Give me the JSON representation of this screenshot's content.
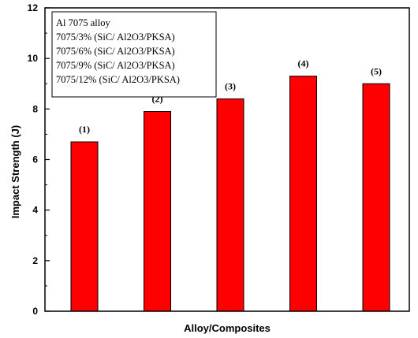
{
  "chart_data": {
    "type": "bar",
    "title": "",
    "xlabel": "Alloy/Composites",
    "ylabel": "Impact Strength (J)",
    "ylim": [
      0,
      12
    ],
    "yticks": [
      "0",
      "2",
      "4",
      "6",
      "8",
      "10",
      "12"
    ],
    "categories": [
      "(1)",
      "(2)",
      "(3)",
      "(4)",
      "(5)"
    ],
    "values": [
      6.7,
      7.9,
      8.4,
      9.3,
      9.0
    ],
    "bar_color": "#ff0000",
    "grid": false,
    "legend": {
      "placement": "top-left",
      "entries": [
        "Al 7075 alloy",
        "7075/3% (SiC/ Al2O3/PKSA)",
        "7075/6% (SiC/ Al2O3/PKSA)",
        "7075/9% (SiC/ Al2O3/PKSA)",
        "7075/12% (SiC/ Al2O3/PKSA)"
      ]
    }
  }
}
